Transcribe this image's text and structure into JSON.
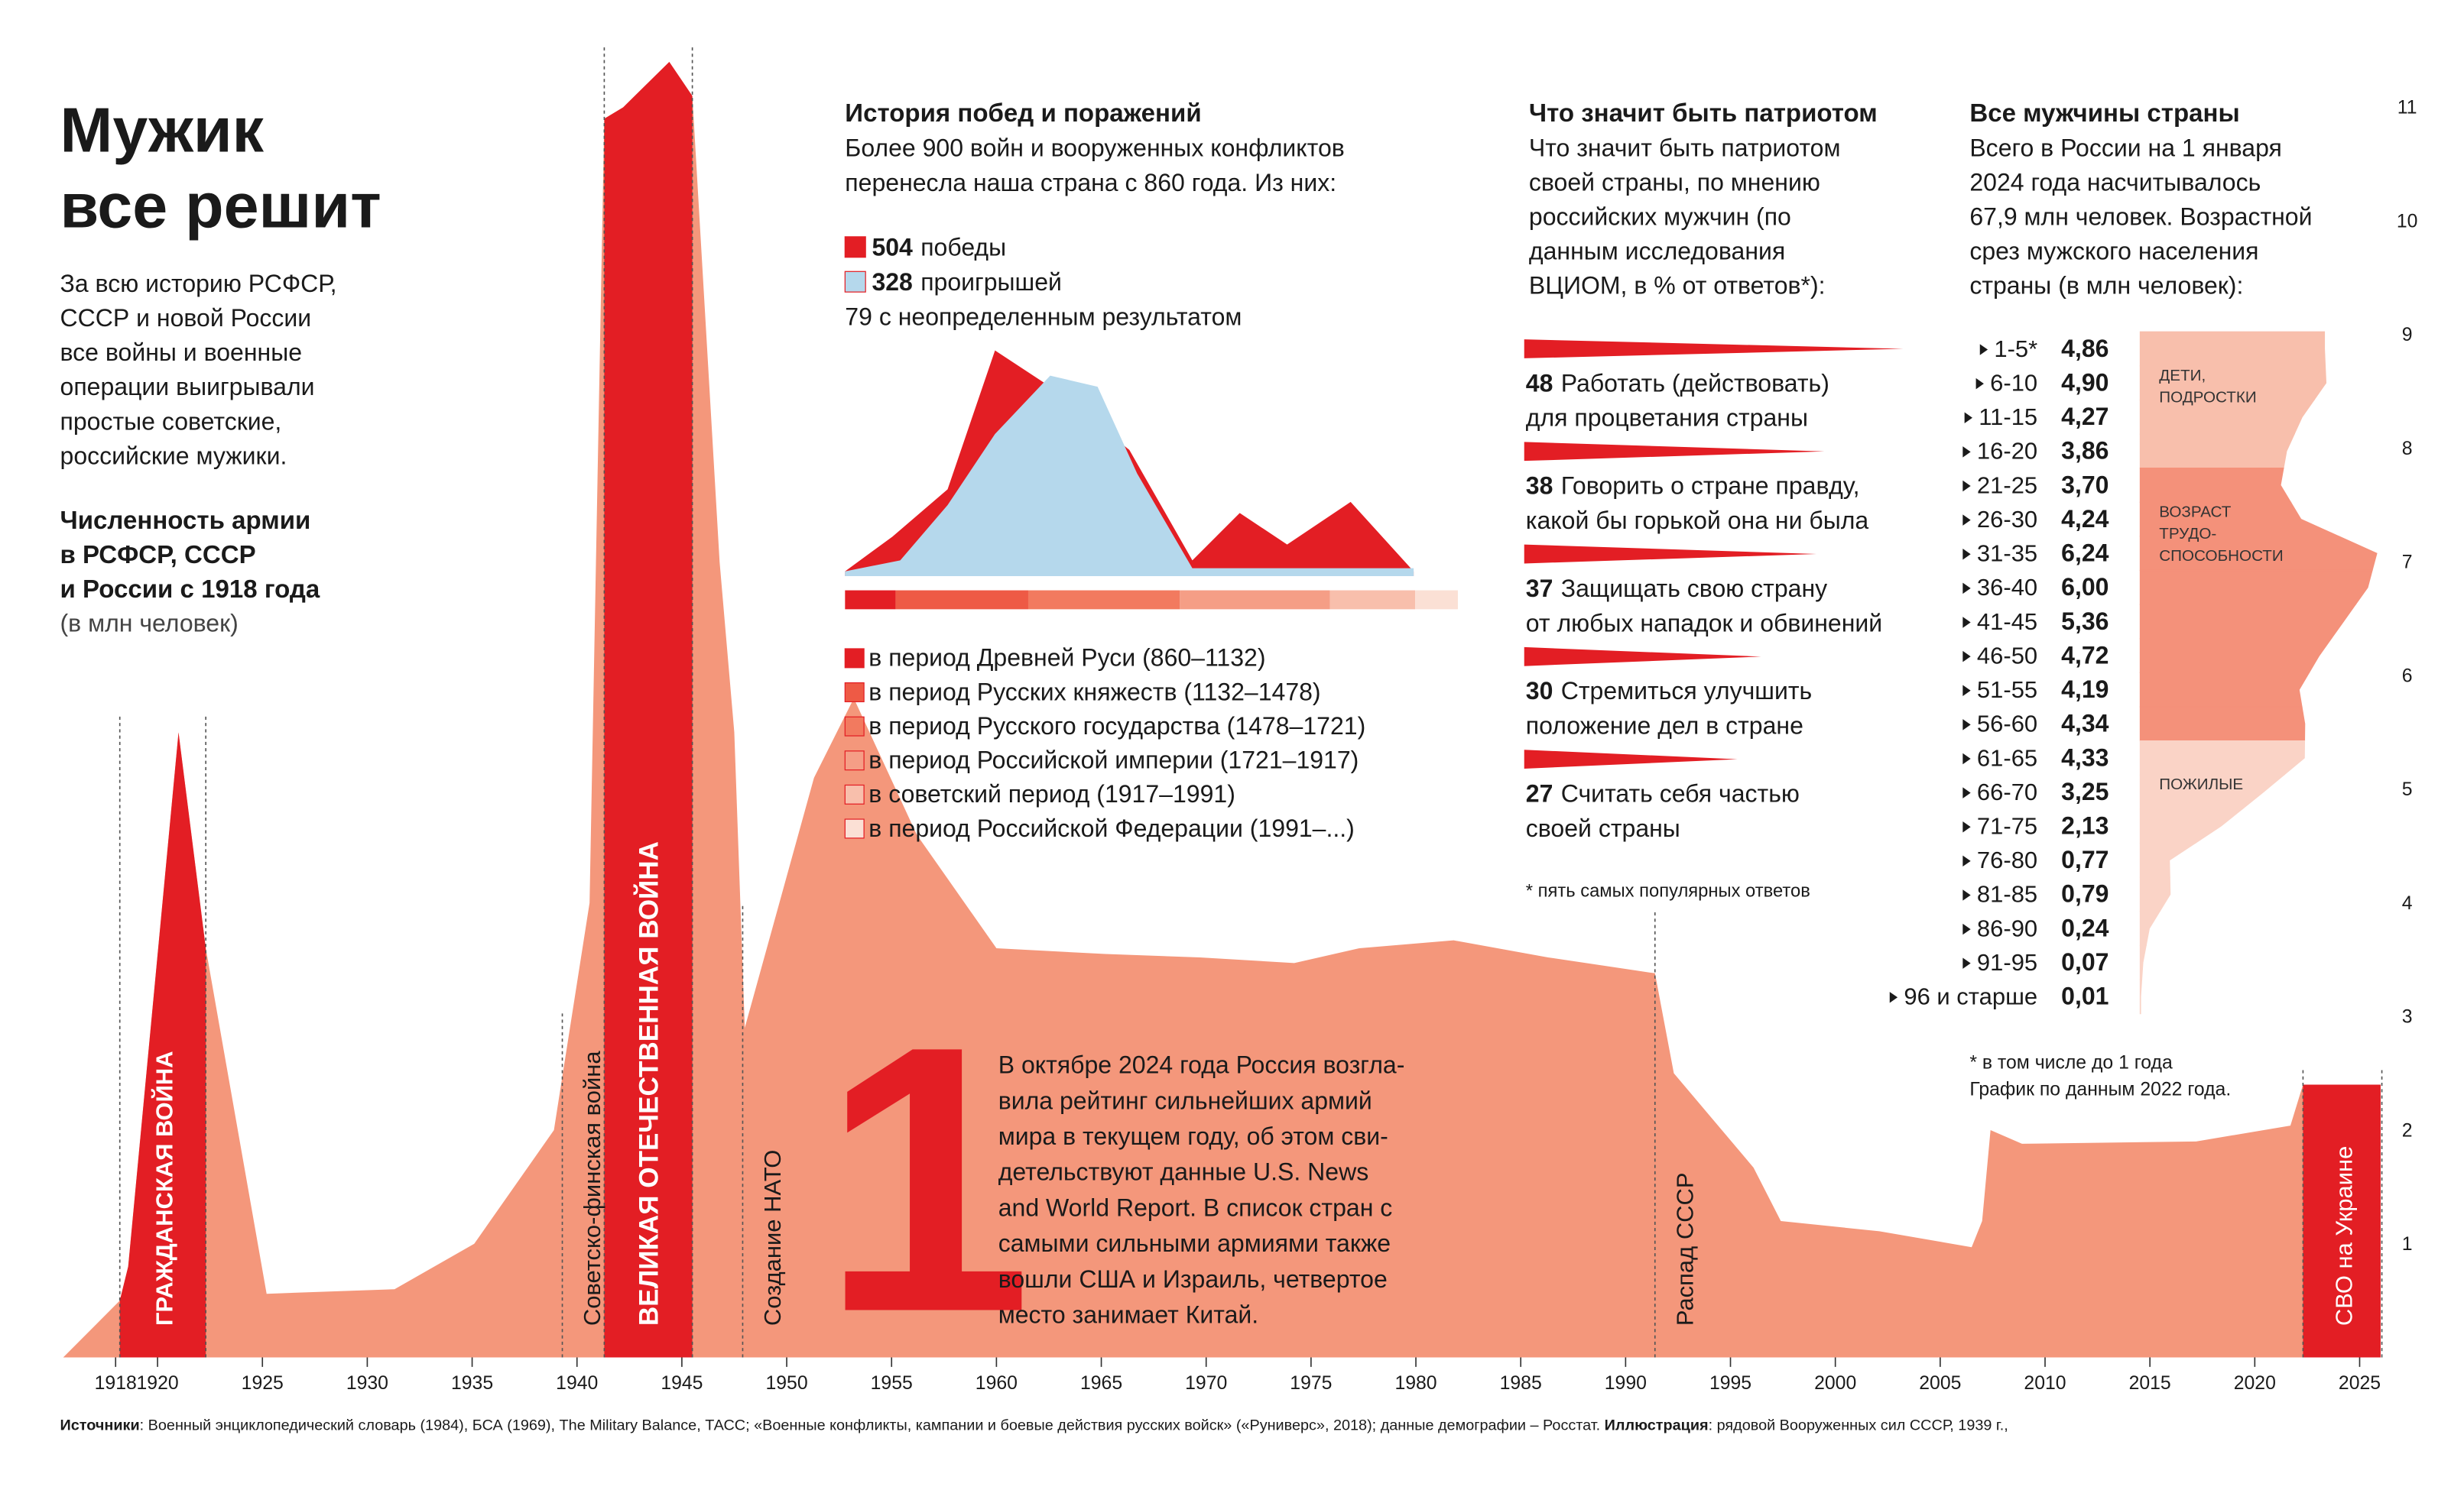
{
  "header": {
    "title": [
      "Мужик",
      "все решит"
    ],
    "intro": [
      "За всю историю РСФСР,",
      "СССР и новой России",
      "все войны и военные",
      "операции выигрывали",
      "простые советские,",
      "российские мужики."
    ]
  },
  "rank": {
    "number": "1",
    "text": [
      "В октябре 2024 года Россия возгла-",
      "вила рейтинг сильнейших армий",
      "мира в текущем году, об этом сви-",
      "детельствуют данные U.S. News",
      "and World Report. В список стран с",
      "самыми сильными армиями также",
      "вошли США и Израиль, четвертое",
      "место занимает Китай."
    ]
  },
  "chart_data": [
    {
      "type": "area",
      "title": [
        "Численность армии",
        "в РСФСР, СССР",
        "и России с 1918 года"
      ],
      "subtitle": "(в млн человек)",
      "x": [
        1915.5,
        1918.2,
        1918.6,
        1921,
        1922.3,
        1925.2,
        1931.3,
        1935.1,
        1938.9,
        1940.6,
        1941.3,
        1942.2,
        1944.4,
        1945.5,
        1946.8,
        1947.5,
        1948,
        1951.3,
        1953.2,
        1956.2,
        1960,
        1965.2,
        1969.7,
        1974.2,
        1977.3,
        1981.8,
        1986.3,
        1991.4,
        1992.3,
        1996.1,
        1997.4,
        2002.1,
        2006.5,
        2007,
        2007.4,
        2008.9,
        2017.2,
        2021.7,
        2022.3,
        2026
      ],
      "values": [
        0,
        0.5,
        0.8,
        5.5,
        3.6,
        0.56,
        0.6,
        1.0,
        2.0,
        4.0,
        10.9,
        11.0,
        11.4,
        11.1,
        7.0,
        5.5,
        2.9,
        5.1,
        5.8,
        4.6,
        3.6,
        3.55,
        3.52,
        3.47,
        3.6,
        3.67,
        3.52,
        3.38,
        2.5,
        1.67,
        1.2,
        1.11,
        0.97,
        1.2,
        2.0,
        1.88,
        1.9,
        2.04,
        2.4,
        2.4
      ],
      "color": "#f4977b",
      "war_color": "#e31e24",
      "xlim": [
        1915.5,
        2026.06
      ],
      "ylim": [
        0,
        11
      ],
      "xticks": [
        1918,
        1920,
        1925,
        1930,
        1935,
        1940,
        1945,
        1950,
        1955,
        1960,
        1965,
        1970,
        1975,
        1980,
        1985,
        1990,
        1995,
        2000,
        2005,
        2010,
        2015,
        2020,
        2025
      ],
      "yticks": [
        1,
        2,
        3,
        4,
        5,
        6,
        7,
        8,
        9,
        10,
        11
      ],
      "periods": [
        {
          "name": "ГРАЖДАНСКАЯ ВОЙНА",
          "start": 1918.2,
          "end": 1922.3
        },
        {
          "name": "ВЕЛИКАЯ ОТЕЧЕСТВЕННАЯ ВОЙНА",
          "start": 1941.3,
          "end": 1945.5
        },
        {
          "name": "СВО на Украине",
          "start": 2022.3,
          "end": 2026.06
        }
      ],
      "events": [
        {
          "name": "Советско-финская война",
          "x": 1939.3
        },
        {
          "name": "Создание НАТО",
          "x": 1947.9
        },
        {
          "name": "Распад СССР",
          "x": 1991.4
        }
      ]
    },
    {
      "type": "area",
      "title": "История побед и поражений",
      "subtitle": [
        "Более 900 войн и вооруженных конфликтов",
        "перенесла наша страна с 860 года. Из них:"
      ],
      "xlim": [
        860,
        2024
      ],
      "ylim": [
        0,
        150
      ],
      "series": [
        {
          "name": "победы",
          "count": 504,
          "color": "#e31e24",
          "x": [
            860,
            957,
            1070,
            1167,
            1280,
            1442,
            1571,
            1668,
            1765,
            1895,
            2024
          ],
          "values": [
            3,
            25,
            55,
            143,
            120,
            80,
            10,
            40,
            20,
            47,
            3
          ]
        },
        {
          "name": "проигрышей",
          "count": 328,
          "color": "#b5d8ec",
          "x": [
            860,
            973,
            1070,
            1167,
            1280,
            1377,
            1458,
            1571,
            2024
          ],
          "values": [
            3,
            10,
            45,
            90,
            127,
            120,
            65,
            5,
            5
          ]
        }
      ],
      "other": "79 с неопределенным результатом",
      "periods": [
        {
          "name": "в период Древней Руси (860–1132)",
          "color": "#e31e24"
        },
        {
          "name": "в период Русских княжеств (1132–1478)",
          "color": "#ee5a45"
        },
        {
          "name": "в период Русского государства (1478–1721)",
          "color": "#f27a5f"
        },
        {
          "name": "в период Российской империи (1721–1917)",
          "color": "#f59e86"
        },
        {
          "name": "в советский период (1917–1991)",
          "color": "#f8bfac"
        },
        {
          "name": "в период Российской Федерации (1991–...)",
          "color": "#fbe0d5"
        }
      ]
    },
    {
      "type": "bar",
      "title": "Что значит быть патриотом",
      "subtitle": [
        "Что значит быть патриотом",
        "своей страны, по мнению",
        "российских мужчин (по",
        "данным исследования",
        "ВЦИОМ, в % от ответов*):"
      ],
      "categories": [
        [
          "Работать (действовать)",
          "для процветания страны"
        ],
        [
          "Говорить о стране правду,",
          "какой бы горькой она ни была"
        ],
        [
          "Защищать свою страну",
          "от любых нападок и обвинений"
        ],
        [
          "Стремиться улучшить",
          "положение дел в стране"
        ],
        [
          "Считать себя частью",
          "своей страны"
        ]
      ],
      "values": [
        48,
        38,
        37,
        30,
        27
      ],
      "xlim": [
        0,
        50
      ],
      "color": "#e31e24",
      "note": "* пять самых популярных ответов"
    },
    {
      "type": "bar",
      "title": "Все мужчины страны",
      "subtitle": [
        "Всего в России на 1 января",
        "2024 года насчитывалось",
        "67,9 млн человек. Возрастной",
        "срез мужского населения",
        "страны (в млн человек):"
      ],
      "categories": [
        "1-5*",
        "6-10",
        "11-15",
        "16-20",
        "21-25",
        "26-30",
        "31-35",
        "36-40",
        "41-45",
        "46-50",
        "51-55",
        "56-60",
        "61-65",
        "66-70",
        "71-75",
        "76-80",
        "81-85",
        "86-90",
        "91-95",
        "96 и старше"
      ],
      "values": [
        4.86,
        4.9,
        4.27,
        3.86,
        3.7,
        4.24,
        6.24,
        6.0,
        5.36,
        4.72,
        4.19,
        4.34,
        4.33,
        3.25,
        2.13,
        0.77,
        0.79,
        0.24,
        0.07,
        0.01
      ],
      "value_labels": [
        "4,86",
        "4,90",
        "4,27",
        "3,86",
        "3,70",
        "4,24",
        "6,24",
        "6,00",
        "5,36",
        "4,72",
        "4,19",
        "4,34",
        "4,33",
        "3,25",
        "2,13",
        "0,77",
        "0,79",
        "0,24",
        "0,07",
        "0,01"
      ],
      "xlim": [
        0,
        6.5
      ],
      "groups": [
        {
          "name": [
            "ДЕТИ,",
            "ПОДРОСТКИ"
          ],
          "color": "#f8bfac",
          "first": 0,
          "last": 3
        },
        {
          "name": [
            "ВОЗРАСТ",
            "ТРУДО-",
            "СПОСОБНОСТИ"
          ],
          "color": "#f4917a",
          "first": 4,
          "last": 11
        },
        {
          "name": [
            "ПОЖИЛЫЕ"
          ],
          "color": "#fad3c6",
          "first": 12,
          "last": 19
        }
      ],
      "notes": [
        "* в том числе до 1 года",
        "График по данным 2022 года."
      ]
    }
  ],
  "footer": {
    "sources_label": "Источники",
    "sources": ": Военный энциклопедический словарь (1984), БСА (1969), The Military Balance, ТАСС; «Военные конфликты, кампании и боевые действия русских войск» («Руниверс», 2018); данные демографии – Росстат. ",
    "illustration_label": "Иллюстрация",
    "illustration": ": рядовой Вооруженных сил СССР, 1939 г.,"
  }
}
